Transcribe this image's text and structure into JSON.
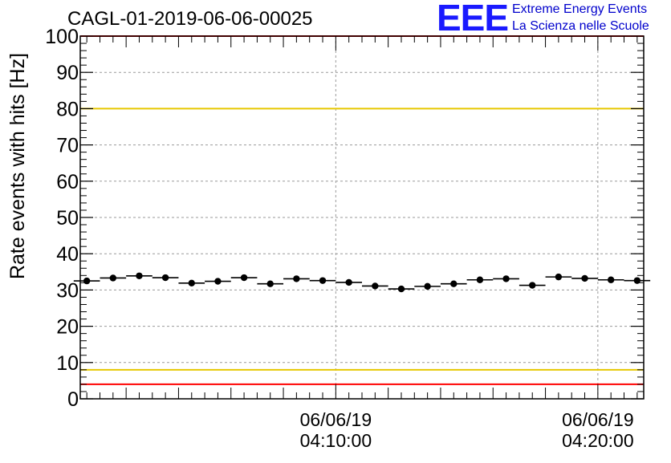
{
  "header": {
    "run_title": "CAGL-01-2019-06-06-00025",
    "logo_mark": "EEE",
    "logo_line1": "Extreme Energy Events",
    "logo_line2": "La Scienza nelle Scuole"
  },
  "colors": {
    "limit_outer": "#ff0000",
    "limit_inner": "#e6c800",
    "markers": "#000000",
    "grid": "#9a9a9a",
    "logo": "#1a1aff"
  },
  "chart_data": {
    "type": "scatter",
    "title": "CAGL-01-2019-06-06-00025",
    "xlabel": "",
    "ylabel": "Rate events with hits [Hz]",
    "ylim": [
      0,
      100
    ],
    "y_ticks": [
      "0",
      "10",
      "20",
      "30",
      "40",
      "50",
      "60",
      "70",
      "80",
      "90",
      "100"
    ],
    "x_tick_labels": [
      {
        "date": "06/06/19",
        "time": "04:10:00"
      },
      {
        "date": "06/06/19",
        "time": "04:20:00"
      }
    ],
    "grid": true,
    "x_range_minutes": [
      "04:00:15",
      "04:21:45"
    ],
    "x_tick_minutes": [
      10,
      20
    ],
    "bin_width_minutes": 1,
    "points": {
      "x": [
        "04:00:30",
        "04:01:30",
        "04:02:30",
        "04:03:30",
        "04:04:30",
        "04:05:30",
        "04:06:30",
        "04:07:30",
        "04:08:30",
        "04:09:30",
        "04:10:30",
        "04:11:30",
        "04:12:30",
        "04:13:30",
        "04:14:30",
        "04:15:30",
        "04:16:30",
        "04:17:30",
        "04:18:30",
        "04:19:30",
        "04:20:30",
        "04:21:30"
      ],
      "y": [
        32.5,
        33.3,
        33.9,
        33.4,
        31.9,
        32.4,
        33.4,
        31.7,
        33.1,
        32.6,
        32.1,
        31.1,
        30.3,
        31.0,
        31.7,
        32.8,
        33.1,
        31.3,
        33.6,
        33.2,
        32.8,
        32.6
      ]
    },
    "reference_lines": [
      {
        "y": 100,
        "color": "red"
      },
      {
        "y": 80,
        "color": "yellow"
      },
      {
        "y": 8,
        "color": "yellow"
      },
      {
        "y": 4,
        "color": "red"
      }
    ]
  }
}
